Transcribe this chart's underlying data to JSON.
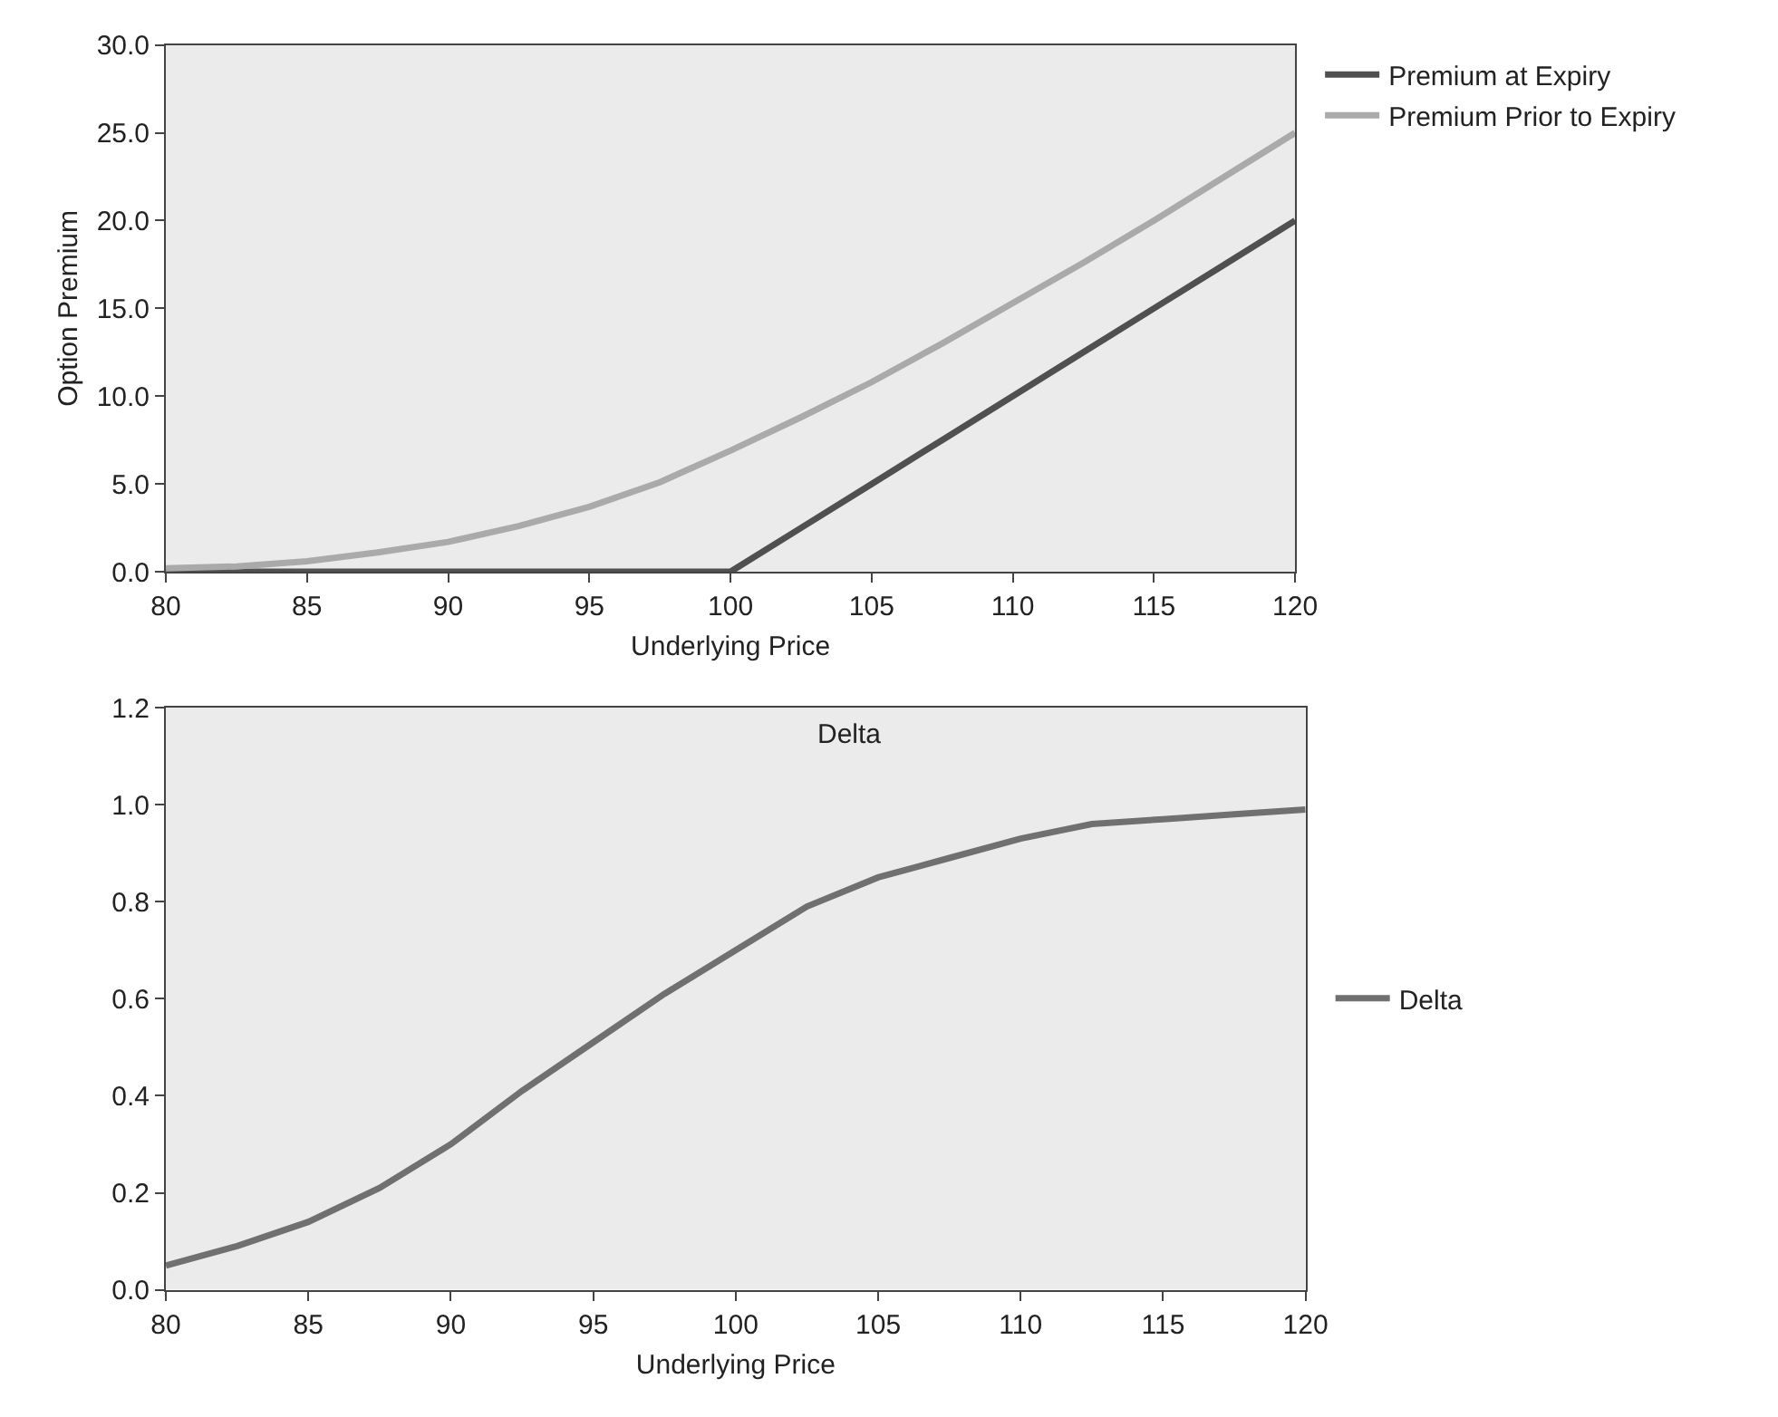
{
  "chart_data": [
    {
      "type": "line",
      "xlabel": "Underlying Price",
      "ylabel": "Option Premium",
      "x": [
        80,
        82.5,
        85,
        87.5,
        90,
        92.5,
        95,
        97.5,
        100,
        102.5,
        105,
        107.5,
        110,
        112.5,
        115,
        117.5,
        120
      ],
      "series": [
        {
          "name": "Premium at Expiry",
          "color": "#505050",
          "values": [
            0,
            0,
            0,
            0,
            0,
            0,
            0,
            0,
            0,
            2.5,
            5.0,
            7.5,
            10.0,
            12.5,
            15.0,
            17.5,
            20.0
          ]
        },
        {
          "name": "Premium Prior to Expiry",
          "color": "#aaaaaa",
          "values": [
            0.2,
            0.3,
            0.6,
            1.1,
            1.7,
            2.6,
            3.7,
            5.1,
            6.9,
            8.8,
            10.8,
            13.0,
            15.3,
            17.6,
            20.0,
            22.5,
            25.0
          ]
        }
      ],
      "xlim": [
        80,
        120
      ],
      "xticks": [
        80,
        85,
        90,
        95,
        100,
        105,
        110,
        115,
        120
      ],
      "ylim": [
        0,
        30
      ],
      "yticks": [
        {
          "value": 0,
          "label": "0.0"
        },
        {
          "value": 5,
          "label": "5.0"
        },
        {
          "value": 10,
          "label": "10.0"
        },
        {
          "value": 15,
          "label": "15.0"
        },
        {
          "value": 20,
          "label": "20.0"
        },
        {
          "value": 25,
          "label": "25.0"
        },
        {
          "value": 30,
          "label": "30.0"
        }
      ],
      "grid": false,
      "legend": "top right",
      "marker": "none",
      "line_style": "solid"
    },
    {
      "type": "line",
      "title": "Delta",
      "xlabel": "Underlying Price",
      "x": [
        80,
        82.5,
        85,
        87.5,
        90,
        92.5,
        95,
        97.5,
        100,
        102.5,
        105,
        107.5,
        110,
        112.5,
        115,
        117.5,
        120
      ],
      "series": [
        {
          "name": "Delta",
          "color": "#707070",
          "values": [
            0.05,
            0.09,
            0.14,
            0.21,
            0.3,
            0.41,
            0.51,
            0.61,
            0.7,
            0.79,
            0.85,
            0.89,
            0.93,
            0.96,
            0.97,
            0.98,
            0.99
          ]
        }
      ],
      "xlim": [
        80,
        120
      ],
      "xticks": [
        80,
        85,
        90,
        95,
        100,
        105,
        110,
        115,
        120
      ],
      "ylim": [
        0,
        1.2
      ],
      "yticks": [
        {
          "value": 0,
          "label": "0.0"
        },
        {
          "value": 0.2,
          "label": "0.2"
        },
        {
          "value": 0.4,
          "label": "0.4"
        },
        {
          "value": 0.6,
          "label": "0.6"
        },
        {
          "value": 0.8,
          "label": "0.8"
        },
        {
          "value": 1.0,
          "label": "1.0"
        },
        {
          "value": 1.2,
          "label": "1.2"
        }
      ],
      "grid": false,
      "legend": "right",
      "marker": "none",
      "line_style": "solid"
    }
  ]
}
